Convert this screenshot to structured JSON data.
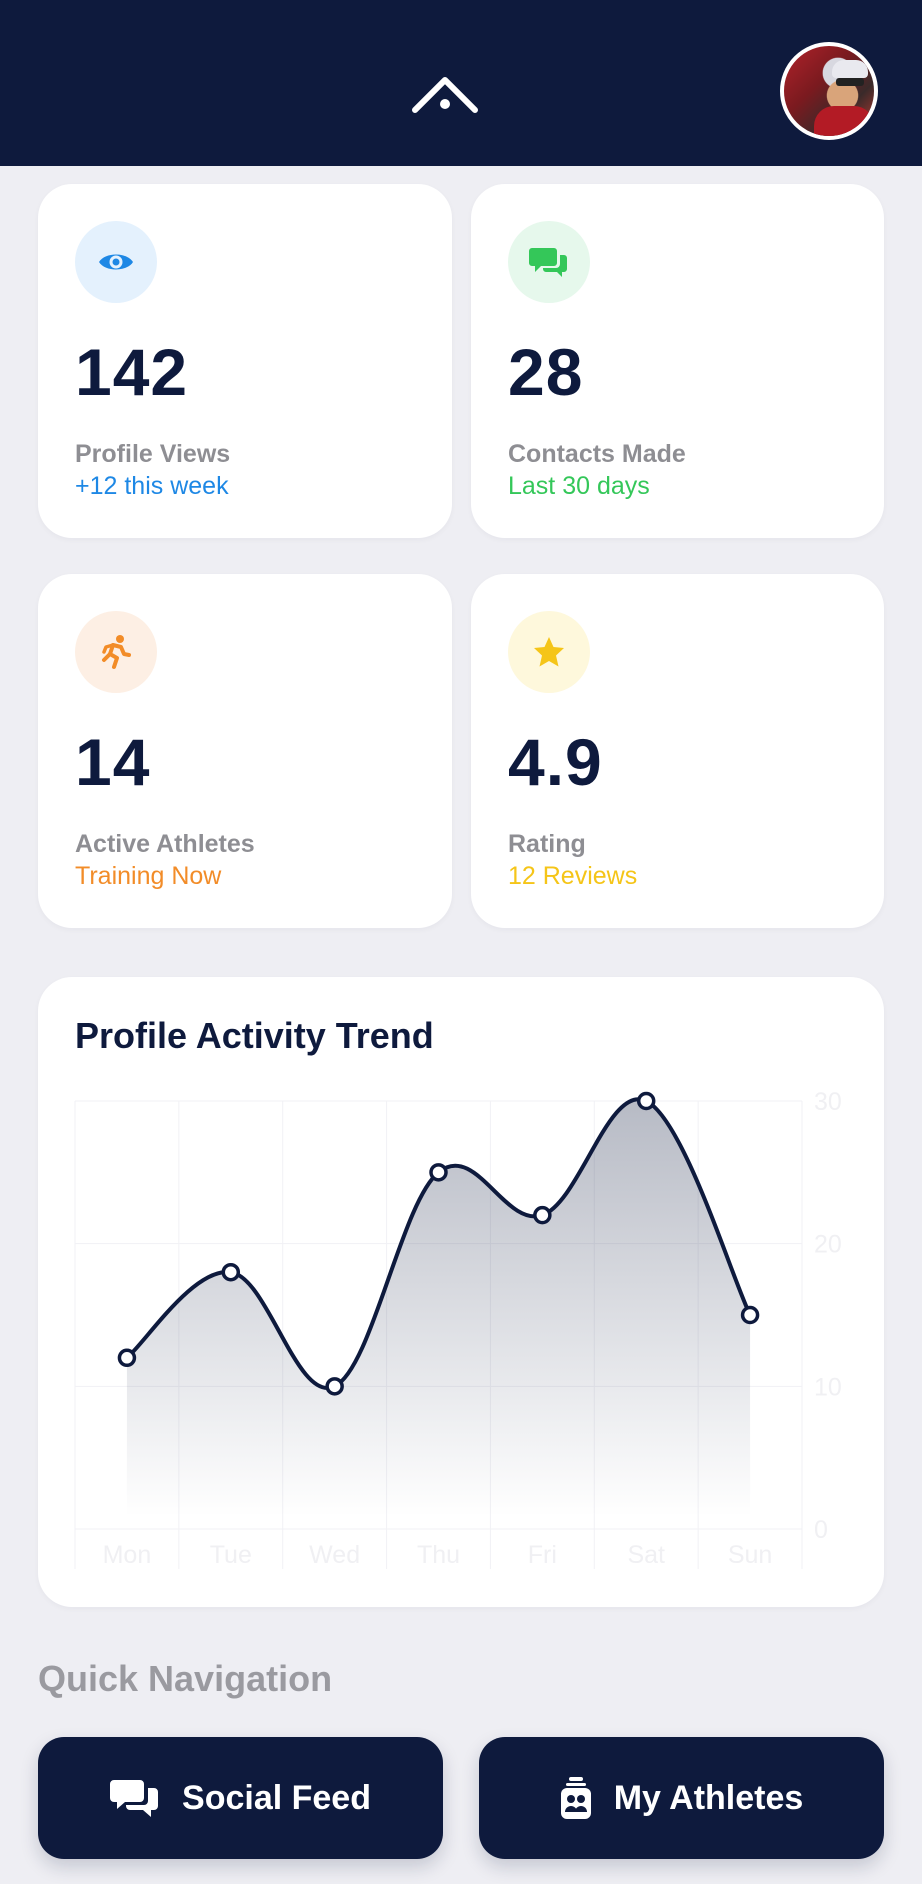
{
  "header": {
    "logo_icon": "chevron-up-dot-logo-icon",
    "avatar_icon": "user-avatar"
  },
  "stats": [
    {
      "icon": "eye-icon",
      "value": "142",
      "label": "Profile Views",
      "sub": "+12 this week",
      "sub_color": "#1E88E5",
      "icon_bg": "#E4F1FD",
      "icon_color": "#1E88E5"
    },
    {
      "icon": "chat-bubbles-icon",
      "value": "28",
      "label": "Contacts Made",
      "sub": "Last 30 days",
      "sub_color": "#34C759",
      "icon_bg": "#E6F8EC",
      "icon_color": "#34C759"
    },
    {
      "icon": "running-icon",
      "value": "14",
      "label": "Active Athletes",
      "sub": "Training Now",
      "sub_color": "#F28C28",
      "icon_bg": "#FDEFE4",
      "icon_color": "#F28C28"
    },
    {
      "icon": "star-icon",
      "value": "4.9",
      "label": "Rating",
      "sub": "12 Reviews",
      "sub_color": "#F5C518",
      "icon_bg": "#FEF8DC",
      "icon_color": "#F5C518"
    }
  ],
  "chart": {
    "title": "Profile Activity Trend"
  },
  "chart_data": {
    "type": "area",
    "title": "Profile Activity Trend",
    "categories": [
      "Mon",
      "Tue",
      "Wed",
      "Thu",
      "Fri",
      "Sat",
      "Sun"
    ],
    "values": [
      12,
      18,
      10,
      25,
      22,
      30,
      15
    ],
    "ylim": [
      0,
      30
    ],
    "yticks": [
      0,
      10,
      20,
      30
    ],
    "grid": true,
    "line_color": "#0E1A3D"
  },
  "quick_nav": {
    "title": "Quick Navigation",
    "buttons": [
      {
        "label": "Social Feed",
        "icon": "chat-bubbles-icon"
      },
      {
        "label": "My Athletes",
        "icon": "athletes-badge-icon"
      }
    ]
  }
}
